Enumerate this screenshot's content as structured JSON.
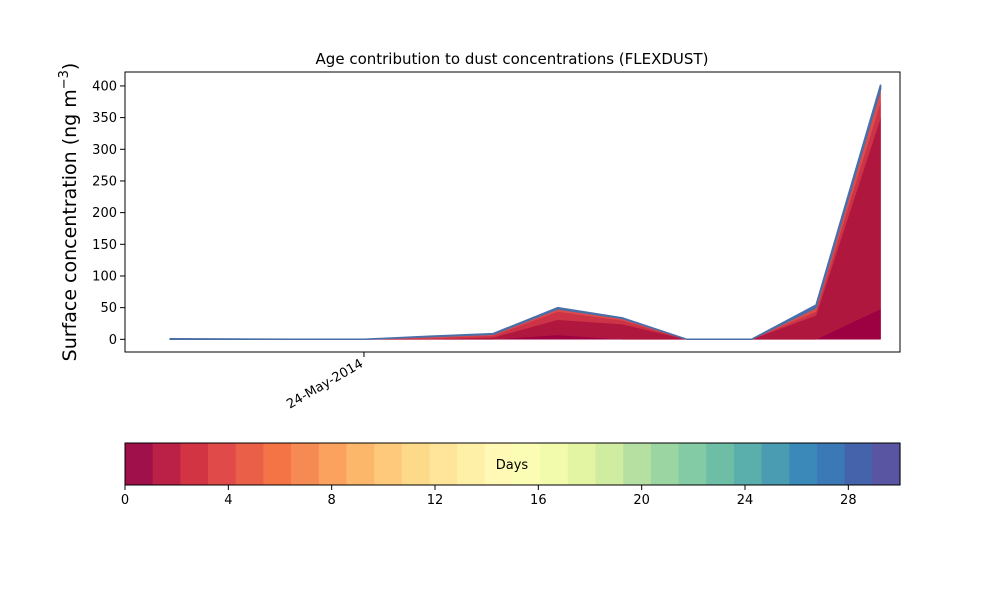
{
  "chart_data": {
    "type": "area",
    "title": "Age contribution to dust concentrations (FLEXDUST)",
    "ylabel_main": "Surface concentration (ng m",
    "ylabel_sup": "−3",
    "ylabel_close": ")",
    "xlabel": "",
    "x_tick_labels": [
      "24-May-2014"
    ],
    "x_tick_positions": [
      3.0
    ],
    "xlim": [
      -0.7,
      11.3
    ],
    "ylim": [
      -20,
      422
    ],
    "y_ticks": [
      0,
      50,
      100,
      150,
      200,
      250,
      300,
      350,
      400
    ],
    "x": [
      0,
      1,
      2,
      3,
      4,
      5,
      6,
      7,
      8,
      9,
      10,
      11
    ],
    "series": [
      {
        "color": "#9e0142",
        "values": [
          0,
          0,
          0,
          0,
          0,
          0,
          7,
          0,
          0,
          0,
          0,
          48
        ]
      },
      {
        "color": "#b0173f",
        "values": [
          0,
          0,
          0,
          0,
          0,
          3,
          24,
          24,
          0,
          0,
          38,
          302
        ]
      },
      {
        "color": "#cc3346",
        "values": [
          0,
          0,
          0,
          0,
          2,
          3,
          13,
          6,
          0,
          0,
          6,
          25
        ]
      },
      {
        "color": "#dd4b4b",
        "values": [
          0,
          0,
          0,
          0,
          2,
          2,
          4,
          3,
          0,
          0,
          6,
          20
        ]
      },
      {
        "color": "#4a6fa8",
        "values": [
          1,
          0.5,
          0,
          0,
          1,
          1,
          2,
          1,
          0,
          0,
          4,
          7
        ]
      }
    ],
    "colorbar": {
      "label": "Days",
      "ticks": [
        0,
        4,
        8,
        12,
        16,
        20,
        24,
        28
      ],
      "range": [
        0,
        30
      ],
      "colors": [
        "#a0104a",
        "#bb2146",
        "#d23444",
        "#e04b4a",
        "#ea5f47",
        "#f57446",
        "#f68a53",
        "#fba25f",
        "#fdb76b",
        "#fec97a",
        "#fdd98a",
        "#fee59a",
        "#fff0a8",
        "#fff9b5",
        "#fbfdb5",
        "#f2faac",
        "#e3f4a2",
        "#cfeca0",
        "#b6e0a1",
        "#9bd6a2",
        "#83cba4",
        "#6ebea6",
        "#5aaeac",
        "#4a9cb2",
        "#3a89b8",
        "#3a78b6",
        "#4563ab",
        "#5a55a3"
      ]
    }
  }
}
